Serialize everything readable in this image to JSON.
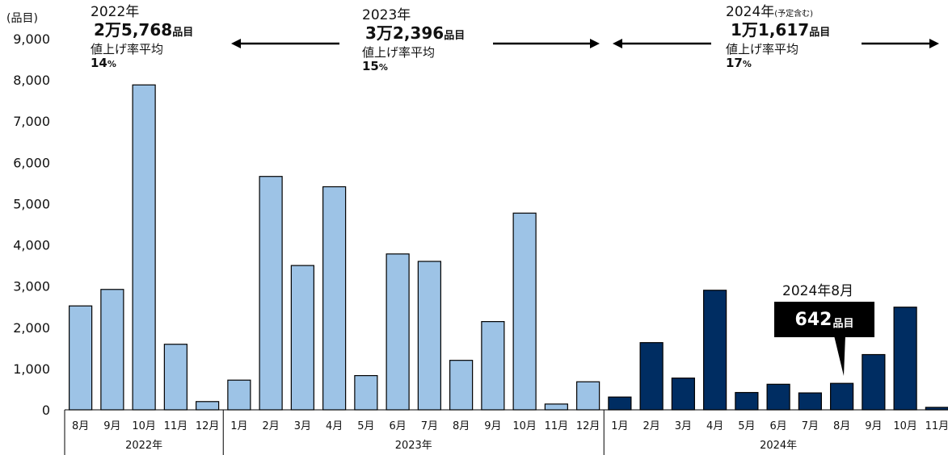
{
  "unit_label": "(品目)",
  "annotations": [
    {
      "year": "2022年",
      "year_note": "",
      "count_main": "2万5,768",
      "count_unit": "品目",
      "avg_label": "値上げ率平均",
      "avg_value": "14",
      "avg_unit": "%"
    },
    {
      "year": "2023年",
      "year_note": "",
      "count_main": "3万2,396",
      "count_unit": "品目",
      "avg_label": "値上げ率平均",
      "avg_value": "15",
      "avg_unit": "%"
    },
    {
      "year": "2024年",
      "year_note": "(予定含む)",
      "count_main": "1万1,617",
      "count_unit": "品目",
      "avg_label": "値上げ率平均",
      "avg_value": "17",
      "avg_unit": "%"
    }
  ],
  "callout": {
    "year_month": "2024年8月",
    "value": "642",
    "unit": "品目"
  },
  "colors": {
    "y2022_2023": "#9dc3e6",
    "y2024": "#002d62",
    "outline": "#000000"
  },
  "chart_data": {
    "type": "bar",
    "title": "",
    "ylim": [
      0,
      9000
    ],
    "yticks": [
      "0",
      "1,000",
      "2,000",
      "3,000",
      "4,000",
      "5,000",
      "6,000",
      "7,000",
      "8,000",
      "9,000"
    ],
    "grid": false,
    "groups": [
      {
        "year": "2022年",
        "categories": [
          "8月",
          "9月",
          "10月",
          "11月",
          "12月"
        ],
        "values": [
          2520,
          2920,
          7880,
          1590,
          200
        ]
      },
      {
        "year": "2023年",
        "categories": [
          "1月",
          "2月",
          "3月",
          "4月",
          "5月",
          "6月",
          "7月",
          "8月",
          "9月",
          "10月",
          "11月",
          "12月"
        ],
        "values": [
          720,
          5660,
          3500,
          5410,
          830,
          3780,
          3600,
          1200,
          2140,
          4770,
          140,
          680
        ]
      },
      {
        "year": "2024年",
        "categories": [
          "1月",
          "2月",
          "3月",
          "4月",
          "5月",
          "6月",
          "7月",
          "8月",
          "9月",
          "10月",
          "11月"
        ],
        "values": [
          310,
          1630,
          770,
          2900,
          420,
          620,
          410,
          642,
          1340,
          2490,
          60
        ]
      }
    ]
  }
}
